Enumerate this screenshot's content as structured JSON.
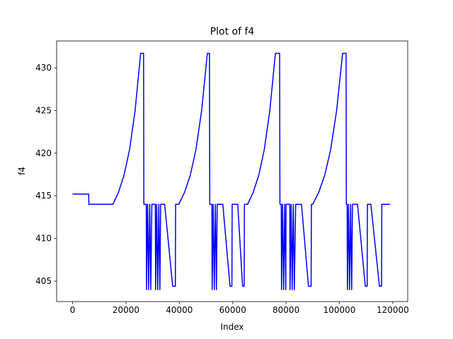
{
  "chart_data": {
    "type": "line",
    "title": "Plot of f4",
    "x_label": "Index",
    "y_label": "f4",
    "color": "#0000ff",
    "x": [
      0,
      6000,
      6100,
      15100,
      17180,
      19260,
      21340,
      23420,
      25500,
      26600,
      26700,
      27600,
      27700,
      28100,
      28500,
      28900,
      29300,
      29700,
      31000,
      31100,
      31500,
      31900,
      32300,
      32700,
      33000,
      34500,
      37500,
      38500,
      38600,
      39800,
      41940,
      44080,
      46220,
      48360,
      50500,
      51300,
      51400,
      52200,
      52300,
      52700,
      53100,
      53500,
      53900,
      54200,
      56300,
      59000,
      59700,
      59800,
      61900,
      63700,
      64300,
      64400,
      65600,
      67680,
      69760,
      71840,
      73920,
      76000,
      77600,
      77700,
      78200,
      78300,
      78700,
      79100,
      79500,
      79900,
      80000,
      81400,
      81500,
      81900,
      82300,
      82700,
      83100,
      83600,
      85800,
      88400,
      89400,
      89500,
      90000,
      92240,
      94480,
      96720,
      98960,
      101200,
      102500,
      102600,
      102900,
      103000,
      103400,
      103800,
      104200,
      104600,
      104900,
      106800,
      109700,
      110400,
      110500,
      111800,
      115000,
      115800,
      115900,
      119000
    ],
    "values": [
      415.2,
      415.2,
      414,
      414,
      415.4,
      417.4,
      420.4,
      425.0,
      431.7,
      431.7,
      414,
      414,
      404,
      414,
      404,
      414,
      404,
      414,
      414,
      404,
      414,
      404,
      414,
      404,
      414,
      414,
      404.4,
      404.4,
      414,
      414,
      415.4,
      417.4,
      420.4,
      425.0,
      431.7,
      431.7,
      414,
      414,
      404,
      414,
      404,
      414,
      404,
      414,
      414,
      404.4,
      404.4,
      414,
      414,
      404.4,
      404.4,
      414,
      414,
      415.4,
      417.4,
      420.4,
      425.0,
      431.7,
      431.7,
      414,
      414,
      404,
      414,
      404,
      414,
      404,
      414,
      414,
      404,
      414,
      404,
      414,
      404,
      414,
      414,
      404.4,
      404.4,
      414,
      414,
      415.4,
      417.4,
      420.4,
      425.0,
      431.7,
      431.7,
      414,
      414,
      404,
      414,
      404,
      414,
      404,
      414,
      414,
      404.4,
      404.4,
      414,
      414,
      404.4,
      404.4,
      414,
      414
    ],
    "xlim": [
      -6000,
      125600
    ],
    "ylim": [
      402.6,
      433.15
    ],
    "xticks": [
      0,
      20000,
      40000,
      60000,
      80000,
      100000,
      120000
    ],
    "yticks": [
      405,
      410,
      415,
      420,
      425,
      430
    ]
  }
}
